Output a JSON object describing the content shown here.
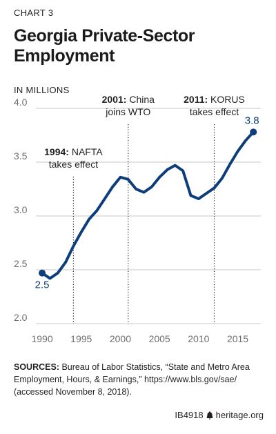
{
  "header": {
    "chart_number": "CHART 3",
    "title_line1": "Georgia Private-Sector",
    "title_line2": "Employment",
    "units": "IN MILLIONS"
  },
  "colors": {
    "series": "#0d3d7a",
    "text": "#231f20",
    "grid": "#c7c7c7"
  },
  "chart_data": {
    "type": "line",
    "title": "Georgia Private-Sector Employment",
    "ylabel": "IN MILLIONS",
    "xlabel": "",
    "xlim": [
      1989.2,
      2017.6
    ],
    "ylim": [
      2.0,
      4.0
    ],
    "xticks": [
      "1990",
      "1995",
      "2000",
      "2005",
      "2010",
      "2015"
    ],
    "yticks": [
      "4.0",
      "3.5",
      "3.0",
      "2.5",
      "2.0"
    ],
    "grid": "horizontal",
    "series": [
      {
        "x": [
          1990,
          1991,
          1992,
          1993,
          1994,
          1995,
          1996,
          1997,
          1998,
          1999,
          2000,
          2001,
          2002,
          2003,
          2004,
          2005,
          2006,
          2007,
          2008,
          2009,
          2010,
          2011,
          2012,
          2013,
          2014,
          2015,
          2016,
          2017
        ],
        "values": [
          2.47,
          2.42,
          2.47,
          2.57,
          2.72,
          2.85,
          2.97,
          3.05,
          3.16,
          3.27,
          3.36,
          3.34,
          3.25,
          3.22,
          3.27,
          3.36,
          3.43,
          3.47,
          3.42,
          3.19,
          3.16,
          3.21,
          3.26,
          3.35,
          3.48,
          3.6,
          3.7,
          3.78
        ]
      }
    ],
    "data_labels": [
      {
        "x": 1990,
        "y": 2.47,
        "text": "2.5"
      },
      {
        "x": 2017,
        "y": 3.78,
        "text": "3.8"
      }
    ],
    "annotations": [
      {
        "x": 1994,
        "bold": "1994:",
        "line1_rest": " NAFTA",
        "line2": "takes effect"
      },
      {
        "x": 2001,
        "bold": "2001:",
        "line1_rest": " China",
        "line2": "joins WTO"
      },
      {
        "x": 2012,
        "bold": "2011:",
        "line1_rest": " KORUS",
        "line2": "takes effect"
      }
    ]
  },
  "sources": {
    "label": "SOURCES:",
    "text": " Bureau of Labor Statistics, “State and Metro Area Employment, Hours, & Earnings,” https://www.bls.gov/sae/ (accessed November 8, 2018)."
  },
  "footer": {
    "code": "IB4918",
    "site": "heritage.org"
  }
}
